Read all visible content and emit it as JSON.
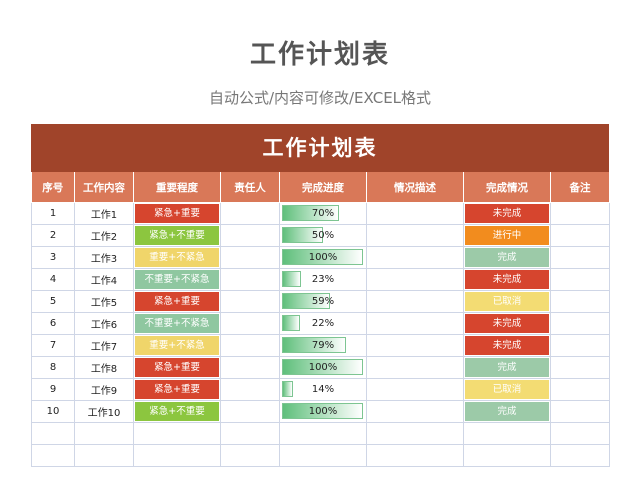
{
  "header": {
    "title": "工作计划表",
    "subtitle": "自动公式/内容可修改/EXCEL格式"
  },
  "sheet": {
    "banner": "工作计划表",
    "columns": [
      "序号",
      "工作内容",
      "重要程度",
      "责任人",
      "完成进度",
      "情况描述",
      "完成情况",
      "备注"
    ],
    "rows": [
      {
        "no": "1",
        "task": "工作1",
        "priority": "紧急+重要",
        "owner": "",
        "progress": 0.7,
        "progress_label": "70%",
        "desc": "",
        "status": "未完成",
        "note": ""
      },
      {
        "no": "2",
        "task": "工作2",
        "priority": "紧急+不重要",
        "owner": "",
        "progress": 0.5,
        "progress_label": "50%",
        "desc": "",
        "status": "进行中",
        "note": ""
      },
      {
        "no": "3",
        "task": "工作3",
        "priority": "重要+不紧急",
        "owner": "",
        "progress": 1.0,
        "progress_label": "100%",
        "desc": "",
        "status": "完成",
        "note": ""
      },
      {
        "no": "4",
        "task": "工作4",
        "priority": "不重要+不紧急",
        "owner": "",
        "progress": 0.23,
        "progress_label": "23%",
        "desc": "",
        "status": "未完成",
        "note": ""
      },
      {
        "no": "5",
        "task": "工作5",
        "priority": "紧急+重要",
        "owner": "",
        "progress": 0.59,
        "progress_label": "59%",
        "desc": "",
        "status": "已取消",
        "note": ""
      },
      {
        "no": "6",
        "task": "工作6",
        "priority": "不重要+不紧急",
        "owner": "",
        "progress": 0.22,
        "progress_label": "22%",
        "desc": "",
        "status": "未完成",
        "note": ""
      },
      {
        "no": "7",
        "task": "工作7",
        "priority": "重要+不紧急",
        "owner": "",
        "progress": 0.79,
        "progress_label": "79%",
        "desc": "",
        "status": "未完成",
        "note": ""
      },
      {
        "no": "8",
        "task": "工作8",
        "priority": "紧急+重要",
        "owner": "",
        "progress": 1.0,
        "progress_label": "100%",
        "desc": "",
        "status": "完成",
        "note": ""
      },
      {
        "no": "9",
        "task": "工作9",
        "priority": "紧急+重要",
        "owner": "",
        "progress": 0.14,
        "progress_label": "14%",
        "desc": "",
        "status": "已取消",
        "note": ""
      },
      {
        "no": "10",
        "task": "工作10",
        "priority": "紧急+不重要",
        "owner": "",
        "progress": 1.0,
        "progress_label": "100%",
        "desc": "",
        "status": "完成",
        "note": ""
      }
    ]
  },
  "colors": {
    "banner": "#a0442a",
    "header": "#d97858",
    "priority": {
      "紧急+重要": "#d6452e",
      "紧急+不重要": "#8cc63f",
      "重要+不紧急": "#f0d56a",
      "不重要+不紧急": "#8fc7a0"
    },
    "status": {
      "未完成": "#d6452e",
      "进行中": "#f28c1e",
      "完成": "#9ccaa8",
      "已取消": "#f3dc73"
    }
  }
}
